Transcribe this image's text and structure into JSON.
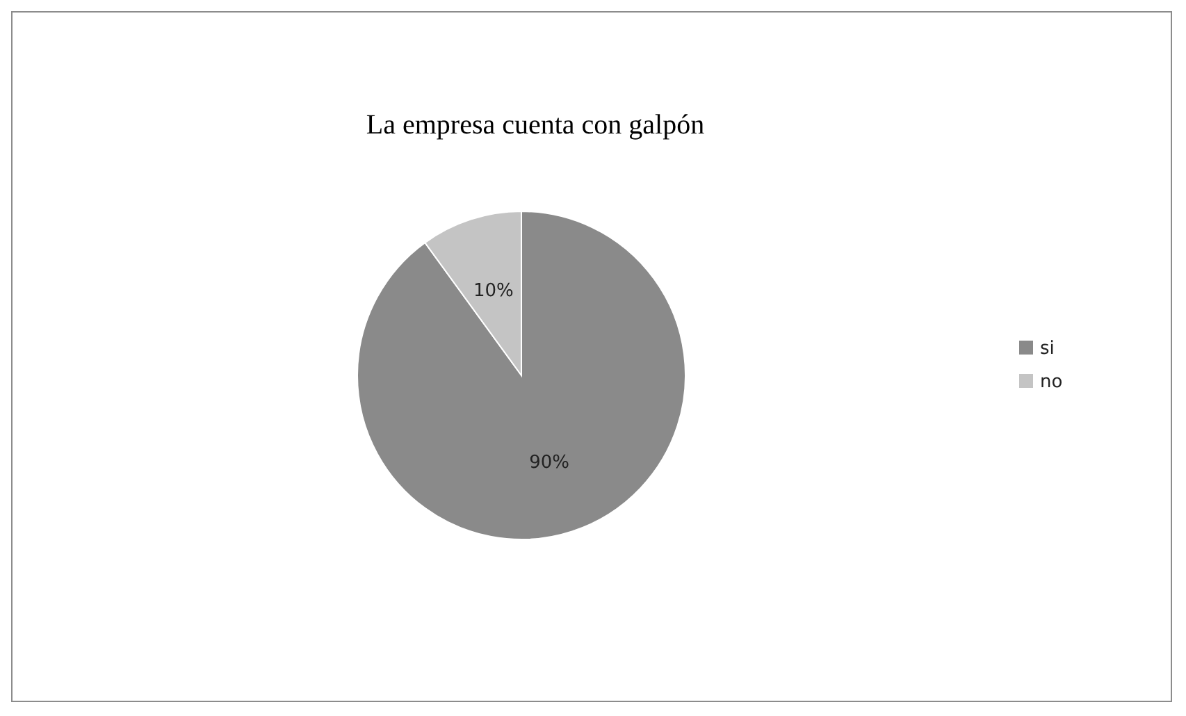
{
  "chart_data": {
    "type": "pie",
    "title": "La empresa cuenta con galpón",
    "categories": [
      "si",
      "no"
    ],
    "values": [
      90,
      10
    ],
    "colors": [
      "#8a8a8a",
      "#c4c4c4"
    ],
    "value_labels": [
      "90%",
      "10%"
    ],
    "legend": "right"
  }
}
